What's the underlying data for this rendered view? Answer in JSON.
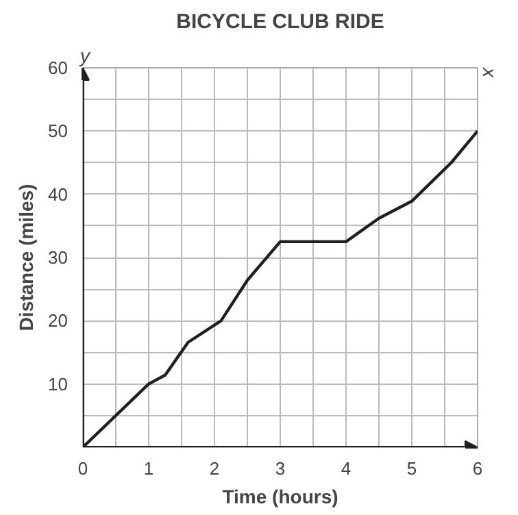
{
  "chart_data": {
    "type": "line",
    "title": "BICYCLE CLUB RIDE",
    "xlabel": "Time (hours)",
    "ylabel": "Distance (miles)",
    "annotations": [
      "x",
      "y"
    ],
    "x": [
      0,
      1,
      1.25,
      1.6,
      2.1,
      2.5,
      3,
      4,
      4.5,
      5,
      5.6,
      6
    ],
    "series": [
      {
        "color": "#231f20",
        "values": [
          0,
          10,
          11.4,
          16.6,
          20,
          26.4,
          32.5,
          32.5,
          36.2,
          38.9,
          45,
          50
        ]
      }
    ],
    "xlim": [
      0,
      6
    ],
    "ylim": [
      0,
      60
    ],
    "xticks": [
      0,
      {
        "value": 0.5,
        "label": null
      },
      1,
      {
        "value": 1.5,
        "label": null
      },
      2,
      {
        "value": 2.5,
        "label": null
      },
      3,
      {
        "value": 3.5,
        "label": null
      },
      4,
      {
        "value": 4.5,
        "label": null
      },
      5,
      {
        "value": 5.5,
        "label": null
      },
      6
    ],
    "yticks": [
      {
        "value": 0,
        "label": null
      },
      {
        "value": 5,
        "label": null
      },
      10,
      {
        "value": 15,
        "label": null
      },
      20,
      {
        "value": 25,
        "label": null
      },
      30,
      {
        "value": 35,
        "label": null
      },
      40,
      {
        "value": 45,
        "label": null
      },
      50,
      {
        "value": 55,
        "label": null
      },
      60
    ],
    "grid": true,
    "marker": "none",
    "line_style": "solid"
  }
}
